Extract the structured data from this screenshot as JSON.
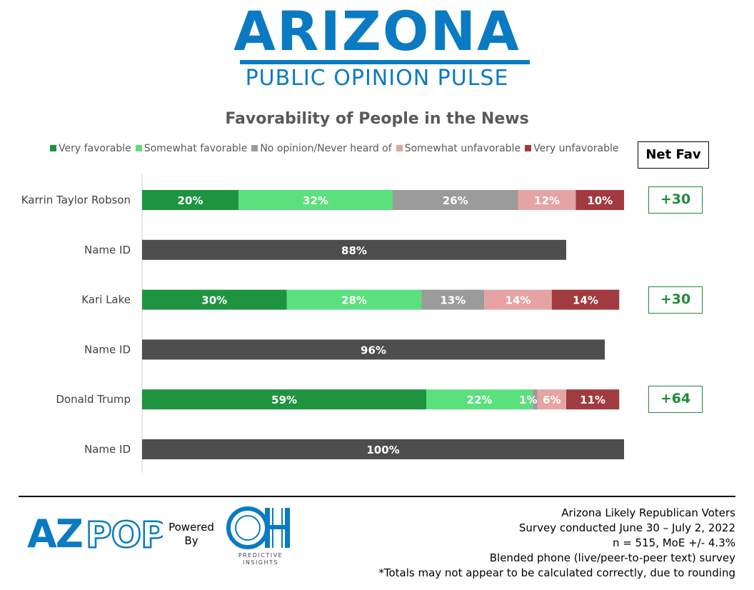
{
  "brand": {
    "title": "ARIZONA",
    "subtitle": "PUBLIC OPINION PULSE"
  },
  "chart_data": {
    "type": "bar",
    "orientation": "horizontal-stacked",
    "title": "Favorability of People in the News",
    "legend_position": "top",
    "xlim": [
      0,
      100
    ],
    "legend": [
      {
        "name": "Very favorable",
        "color": "#1e9440"
      },
      {
        "name": "Somewhat favorable",
        "color": "#5ce07e"
      },
      {
        "name": "No opinion/Never heard of",
        "color": "#9b9b9b"
      },
      {
        "name": "Somewhat unfavorable",
        "color": "#e5a3a3"
      },
      {
        "name": "Very unfavorable",
        "color": "#a23b3f"
      }
    ],
    "name_id_color": "#4d4d4d",
    "net_fav_header": "Net Fav",
    "rows": [
      {
        "label": "Karrin Taylor Robson",
        "kind": "fav",
        "values": [
          20,
          32,
          26,
          12,
          10
        ],
        "labels": [
          "20%",
          "32%",
          "26%",
          "12%",
          "10%"
        ],
        "net_fav": "+30"
      },
      {
        "label": "Name ID",
        "kind": "nameid",
        "values": [
          88
        ],
        "labels": [
          "88%"
        ]
      },
      {
        "label": "Kari Lake",
        "kind": "fav",
        "values": [
          30,
          28,
          13,
          14,
          14
        ],
        "labels": [
          "30%",
          "28%",
          "13%",
          "14%",
          "14%"
        ],
        "net_fav": "+30"
      },
      {
        "label": "Name ID",
        "kind": "nameid",
        "values": [
          96
        ],
        "labels": [
          "96%"
        ]
      },
      {
        "label": "Donald Trump",
        "kind": "fav",
        "values": [
          59,
          22,
          1,
          6,
          11
        ],
        "labels": [
          "59%",
          "22%",
          "1%",
          "6%",
          "11%"
        ],
        "net_fav": "+64"
      },
      {
        "label": "Name ID",
        "kind": "nameid",
        "values": [
          100
        ],
        "labels": [
          "100%"
        ]
      }
    ]
  },
  "footer": {
    "logo_az": "AZ",
    "logo_pop": "POP",
    "powered_by": "Powered\nBy",
    "oh_logo": "OH",
    "oh_caption_1": "PREDICTIVE",
    "oh_caption_2": "INSIGHTS",
    "survey_lines": [
      "Arizona Likely Republican Voters",
      "Survey conducted June 30 – July 2, 2022",
      "n = 515, MoE +/- 4.3%",
      "Blended phone (live/peer-to-peer text) survey",
      "*Totals may not appear to be calculated correctly, due to rounding"
    ]
  }
}
